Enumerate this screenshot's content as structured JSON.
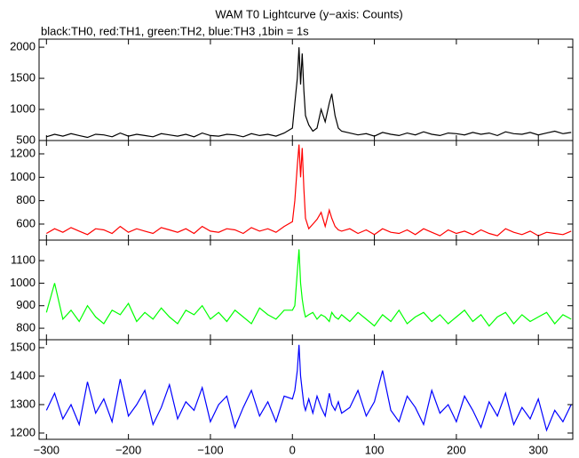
{
  "chart_data": [
    {
      "type": "line",
      "title": "WAM T0 Lightcurve (y−axis: Counts)",
      "subtitle": "black:TH0, red:TH1, green:TH2, blue:TH3 ,1bin = 1s",
      "x": [
        -300,
        -290,
        -280,
        -270,
        -260,
        -250,
        -240,
        -230,
        -220,
        -210,
        -200,
        -190,
        -180,
        -170,
        -160,
        -150,
        -140,
        -130,
        -120,
        -110,
        -100,
        -90,
        -80,
        -70,
        -60,
        -50,
        -40,
        -30,
        -20,
        -10,
        0,
        3,
        6,
        8,
        10,
        12,
        14,
        16,
        20,
        25,
        30,
        35,
        40,
        45,
        48,
        52,
        56,
        60,
        70,
        80,
        90,
        100,
        110,
        120,
        130,
        140,
        150,
        160,
        170,
        180,
        190,
        200,
        210,
        220,
        230,
        240,
        250,
        260,
        270,
        280,
        290,
        300,
        310,
        320,
        330,
        340
      ],
      "xlim": [
        -309,
        342
      ],
      "ylim": [
        500,
        2130
      ],
      "yticks": [
        500,
        1000,
        1500,
        2000
      ],
      "series": [
        {
          "name": "TH0",
          "color": "#000000",
          "values": [
            560,
            600,
            570,
            610,
            580,
            550,
            600,
            590,
            560,
            620,
            570,
            600,
            580,
            560,
            610,
            590,
            570,
            600,
            560,
            620,
            580,
            570,
            600,
            590,
            560,
            610,
            580,
            600,
            570,
            620,
            700,
            1100,
            1500,
            2000,
            1400,
            1900,
            1300,
            900,
            750,
            650,
            700,
            1000,
            800,
            1100,
            1250,
            900,
            700,
            650,
            620,
            590,
            610,
            570,
            630,
            600,
            580,
            620,
            590,
            640,
            600,
            580,
            620,
            610,
            590,
            630,
            600,
            620,
            580,
            640,
            610,
            600,
            630,
            590,
            620,
            650,
            610,
            630
          ]
        }
      ]
    },
    {
      "type": "line",
      "x": [
        -300,
        -290,
        -280,
        -270,
        -260,
        -250,
        -240,
        -230,
        -220,
        -210,
        -200,
        -190,
        -180,
        -170,
        -160,
        -150,
        -140,
        -130,
        -120,
        -110,
        -100,
        -90,
        -80,
        -70,
        -60,
        -50,
        -40,
        -30,
        -20,
        -10,
        0,
        3,
        6,
        8,
        10,
        12,
        14,
        16,
        20,
        25,
        30,
        35,
        40,
        45,
        48,
        52,
        56,
        60,
        70,
        80,
        90,
        100,
        110,
        120,
        130,
        140,
        150,
        160,
        170,
        180,
        190,
        200,
        210,
        220,
        230,
        240,
        250,
        260,
        270,
        280,
        290,
        300,
        310,
        320,
        330,
        340
      ],
      "xlim": [
        -309,
        342
      ],
      "ylim": [
        463,
        1314
      ],
      "yticks": [
        600,
        800,
        1000,
        1200
      ],
      "series": [
        {
          "name": "TH1",
          "color": "#ff0000",
          "values": [
            520,
            560,
            530,
            570,
            540,
            510,
            560,
            550,
            520,
            580,
            530,
            560,
            540,
            520,
            570,
            550,
            530,
            560,
            520,
            580,
            540,
            530,
            560,
            550,
            520,
            570,
            540,
            560,
            530,
            580,
            620,
            800,
            1100,
            1280,
            1000,
            1250,
            900,
            650,
            560,
            600,
            640,
            700,
            580,
            720,
            650,
            580,
            550,
            540,
            560,
            520,
            550,
            510,
            560,
            530,
            520,
            550,
            510,
            560,
            530,
            500,
            550,
            520,
            540,
            510,
            550,
            520,
            500,
            560,
            530,
            510,
            540,
            500,
            530,
            520,
            510,
            540
          ]
        }
      ]
    },
    {
      "type": "line",
      "x": [
        -300,
        -290,
        -280,
        -270,
        -260,
        -250,
        -240,
        -230,
        -220,
        -210,
        -200,
        -190,
        -180,
        -170,
        -160,
        -150,
        -140,
        -130,
        -120,
        -110,
        -100,
        -90,
        -80,
        -70,
        -60,
        -50,
        -40,
        -30,
        -20,
        -10,
        0,
        3,
        6,
        8,
        10,
        12,
        14,
        16,
        20,
        25,
        30,
        35,
        40,
        45,
        48,
        52,
        56,
        60,
        70,
        80,
        90,
        100,
        110,
        120,
        130,
        140,
        150,
        160,
        170,
        180,
        190,
        200,
        210,
        220,
        230,
        240,
        250,
        260,
        270,
        280,
        290,
        300,
        310,
        320,
        330,
        340
      ],
      "xlim": [
        -309,
        342
      ],
      "ylim": [
        749,
        1191
      ],
      "yticks": [
        800,
        900,
        1000,
        1100
      ],
      "series": [
        {
          "name": "TH2",
          "color": "#00ff00",
          "values": [
            870,
            1000,
            840,
            880,
            830,
            900,
            850,
            820,
            880,
            860,
            910,
            830,
            870,
            840,
            890,
            850,
            820,
            880,
            860,
            900,
            840,
            870,
            830,
            880,
            850,
            820,
            890,
            860,
            840,
            880,
            880,
            900,
            1050,
            1150,
            1000,
            930,
            880,
            850,
            860,
            870,
            840,
            860,
            850,
            830,
            870,
            850,
            840,
            860,
            830,
            870,
            840,
            810,
            860,
            830,
            880,
            820,
            850,
            870,
            830,
            860,
            820,
            850,
            880,
            830,
            860,
            810,
            850,
            870,
            820,
            860,
            830,
            850,
            870,
            820,
            860,
            840
          ]
        }
      ]
    },
    {
      "type": "line",
      "x": [
        -300,
        -290,
        -280,
        -270,
        -260,
        -250,
        -240,
        -230,
        -220,
        -210,
        -200,
        -190,
        -180,
        -170,
        -160,
        -150,
        -140,
        -130,
        -120,
        -110,
        -100,
        -90,
        -80,
        -70,
        -60,
        -50,
        -40,
        -30,
        -20,
        -10,
        0,
        3,
        6,
        8,
        10,
        12,
        14,
        16,
        20,
        25,
        30,
        35,
        40,
        45,
        48,
        52,
        56,
        60,
        70,
        80,
        90,
        100,
        110,
        120,
        130,
        140,
        150,
        160,
        170,
        180,
        190,
        200,
        210,
        220,
        230,
        240,
        250,
        260,
        270,
        280,
        290,
        300,
        310,
        320,
        330,
        340
      ],
      "xlim": [
        -309,
        342
      ],
      "ylim": [
        1178,
        1528
      ],
      "yticks": [
        1200,
        1300,
        1400,
        1500
      ],
      "xticks": [
        {
          "value": -300,
          "label": "−300"
        },
        {
          "value": -200,
          "label": "−200"
        },
        {
          "value": -100,
          "label": "−100"
        },
        0,
        100,
        200,
        300
      ],
      "series": [
        {
          "name": "TH3",
          "color": "#0000ff",
          "values": [
            1280,
            1340,
            1250,
            1300,
            1230,
            1380,
            1270,
            1320,
            1240,
            1390,
            1260,
            1300,
            1350,
            1230,
            1290,
            1370,
            1250,
            1310,
            1280,
            1360,
            1240,
            1300,
            1330,
            1220,
            1290,
            1350,
            1260,
            1310,
            1240,
            1330,
            1320,
            1350,
            1420,
            1510,
            1400,
            1350,
            1300,
            1280,
            1320,
            1270,
            1330,
            1290,
            1260,
            1340,
            1300,
            1280,
            1310,
            1270,
            1290,
            1350,
            1260,
            1310,
            1420,
            1280,
            1240,
            1330,
            1290,
            1230,
            1350,
            1270,
            1300,
            1240,
            1330,
            1280,
            1220,
            1310,
            1260,
            1340,
            1230,
            1290,
            1250,
            1320,
            1210,
            1280,
            1240,
            1300
          ]
        }
      ]
    }
  ]
}
